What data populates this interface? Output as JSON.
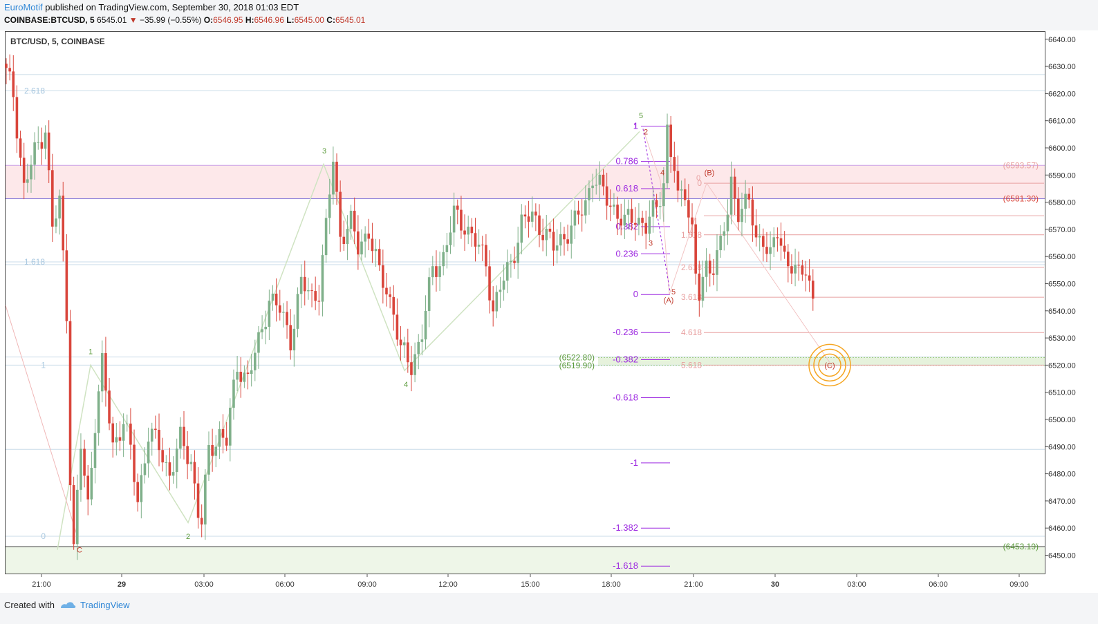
{
  "header": {
    "author": "EuroMotif",
    "published_text": " published on TradingView.com, September 30, 2018 01:03 EDT",
    "symbol": "COINBASE:BTCUSD, 5",
    "last": "6545.01",
    "change": "−35.99 (−0.55%)",
    "o_label": "O:",
    "o_value": "6546.95",
    "h_label": "H:",
    "h_value": "6546.96",
    "l_label": "L:",
    "l_value": "6545.00",
    "c_label": "C:",
    "c_value": "6545.01"
  },
  "chart_label": "BTC/USD, 5, COINBASE",
  "footer": {
    "created_with": "Created with",
    "brand": "TradingView",
    "logo_icon": "tradingview-logo-icon"
  },
  "colors": {
    "up": "#7fb08a",
    "down": "#d9453b",
    "purple": "#9c27e0",
    "green_label": "#5a9a3a",
    "red_label": "#c0392b",
    "fib_blue": "#b8d4e8",
    "fib_red": "#e8a0a0",
    "zone_red": "#fde8ea",
    "zone_green": "#eef6e8"
  },
  "chart_data": {
    "type": "candlestick",
    "title": "BTC/USD, 5, COINBASE",
    "ylim": [
      6443,
      6643
    ],
    "y_ticks": [
      "6640.00",
      "6630.00",
      "6620.00",
      "6610.00",
      "6600.00",
      "6590.00",
      "6580.00",
      "6570.00",
      "6560.00",
      "6550.00",
      "6540.00",
      "6530.00",
      "6520.00",
      "6510.00",
      "6500.00",
      "6490.00",
      "6480.00",
      "6470.00",
      "6460.00",
      "6450.00"
    ],
    "x_ticks": [
      "21:00",
      "29",
      "03:00",
      "06:00",
      "09:00",
      "12:00",
      "15:00",
      "18:00",
      "21:00",
      "30",
      "03:00",
      "06:00",
      "09:00"
    ],
    "price_path": [
      [
        0,
        6631
      ],
      [
        3,
        6620
      ],
      [
        6,
        6585
      ],
      [
        9,
        6598
      ],
      [
        12,
        6608
      ],
      [
        14,
        6570
      ],
      [
        16,
        6580
      ],
      [
        18,
        6540
      ],
      [
        19,
        6480
      ],
      [
        20,
        6452
      ],
      [
        22,
        6490
      ],
      [
        24,
        6468
      ],
      [
        26,
        6500
      ],
      [
        28,
        6520
      ],
      [
        31,
        6490
      ],
      [
        34,
        6500
      ],
      [
        36,
        6488
      ],
      [
        38,
        6470
      ],
      [
        41,
        6495
      ],
      [
        44,
        6490
      ],
      [
        47,
        6480
      ],
      [
        50,
        6492
      ],
      [
        53,
        6485
      ],
      [
        55,
        6466
      ],
      [
        56,
        6462
      ],
      [
        58,
        6488
      ],
      [
        61,
        6495
      ],
      [
        63,
        6492
      ],
      [
        66,
        6520
      ],
      [
        69,
        6515
      ],
      [
        72,
        6528
      ],
      [
        75,
        6545
      ],
      [
        78,
        6540
      ],
      [
        81,
        6530
      ],
      [
        84,
        6550
      ],
      [
        87,
        6545
      ],
      [
        89,
        6548
      ],
      [
        91,
        6570
      ],
      [
        93,
        6596
      ],
      [
        95,
        6568
      ],
      [
        98,
        6572
      ],
      [
        100,
        6563
      ],
      [
        103,
        6570
      ],
      [
        106,
        6553
      ],
      [
        108,
        6548
      ],
      [
        110,
        6540
      ],
      [
        112,
        6525
      ],
      [
        115,
        6520
      ],
      [
        118,
        6532
      ],
      [
        121,
        6555
      ],
      [
        124,
        6560
      ],
      [
        127,
        6575
      ],
      [
        130,
        6572
      ],
      [
        133,
        6565
      ],
      [
        136,
        6558
      ],
      [
        138,
        6540
      ],
      [
        140,
        6548
      ],
      [
        143,
        6558
      ],
      [
        146,
        6572
      ],
      [
        149,
        6575
      ],
      [
        152,
        6570
      ],
      [
        155,
        6563
      ],
      [
        158,
        6568
      ],
      [
        161,
        6572
      ],
      [
        164,
        6580
      ],
      [
        166,
        6590
      ],
      [
        169,
        6583
      ],
      [
        172,
        6578
      ],
      [
        175,
        6572
      ],
      [
        178,
        6575
      ],
      [
        181,
        6571
      ],
      [
        184,
        6578
      ],
      [
        186,
        6588
      ],
      [
        187,
        6607
      ],
      [
        188,
        6598
      ],
      [
        189,
        6592
      ],
      [
        190,
        6580
      ],
      [
        192,
        6585
      ],
      [
        194,
        6570
      ],
      [
        195,
        6553
      ],
      [
        196,
        6545
      ],
      [
        198,
        6555
      ],
      [
        200,
        6558
      ],
      [
        202,
        6565
      ],
      [
        204,
        6575
      ],
      [
        205,
        6586
      ],
      [
        207,
        6578
      ],
      [
        210,
        6580
      ],
      [
        212,
        6565
      ],
      [
        214,
        6568
      ],
      [
        216,
        6560
      ],
      [
        218,
        6568
      ],
      [
        220,
        6560
      ],
      [
        222,
        6558
      ],
      [
        224,
        6552
      ],
      [
        226,
        6555
      ],
      [
        228,
        6545
      ]
    ],
    "fib_levels_purple": [
      {
        "label": "1",
        "value": 6608
      },
      {
        "label": "0.786",
        "value": 6595
      },
      {
        "label": "0.618",
        "value": 6585
      },
      {
        "label": "0.382",
        "value": 6571
      },
      {
        "label": "0.236",
        "value": 6561
      },
      {
        "label": "0",
        "value": 6546
      },
      {
        "label": "-0.236",
        "value": 6532
      },
      {
        "label": "-0.382",
        "value": 6522
      },
      {
        "label": "-0.618",
        "value": 6508
      },
      {
        "label": "-1",
        "value": 6484
      },
      {
        "label": "-1.382",
        "value": 6460
      },
      {
        "label": "-1.618",
        "value": 6446
      }
    ],
    "fib_levels_blue": [
      {
        "label": "2.618",
        "value": 6621
      },
      {
        "label": "1.618",
        "value": 6558
      },
      {
        "label": "1",
        "value": 6520
      },
      {
        "label": "0",
        "value": 6457
      }
    ],
    "fib_levels_red": [
      {
        "label": "0",
        "value": 6587
      },
      {
        "label": "1.618",
        "value": 6568
      },
      {
        "label": "2.618",
        "value": 6556
      },
      {
        "label": "3.618",
        "value": 6545
      },
      {
        "label": "4.618",
        "value": 6532
      },
      {
        "label": "5.618",
        "value": 6520
      }
    ],
    "price_labels": [
      {
        "text": "(6593.57)",
        "value": 6593.57,
        "color": "#e8a0a0"
      },
      {
        "text": "(6581.30)",
        "value": 6581.3,
        "color": "#d9453b"
      },
      {
        "text": "(6522.80)",
        "value": 6522.8,
        "color": "#5a9a3a"
      },
      {
        "text": "(6519.90)",
        "value": 6519.9,
        "color": "#5a9a3a"
      },
      {
        "text": "(6453.19)",
        "value": 6453.19,
        "color": "#5a9a3a"
      }
    ],
    "wave_labels_green": [
      "1",
      "2",
      "3",
      "4",
      "5"
    ],
    "wave_labels_red": [
      "2",
      "3",
      "4",
      "5",
      "C",
      "(A)",
      "(B)",
      "(C)"
    ]
  }
}
